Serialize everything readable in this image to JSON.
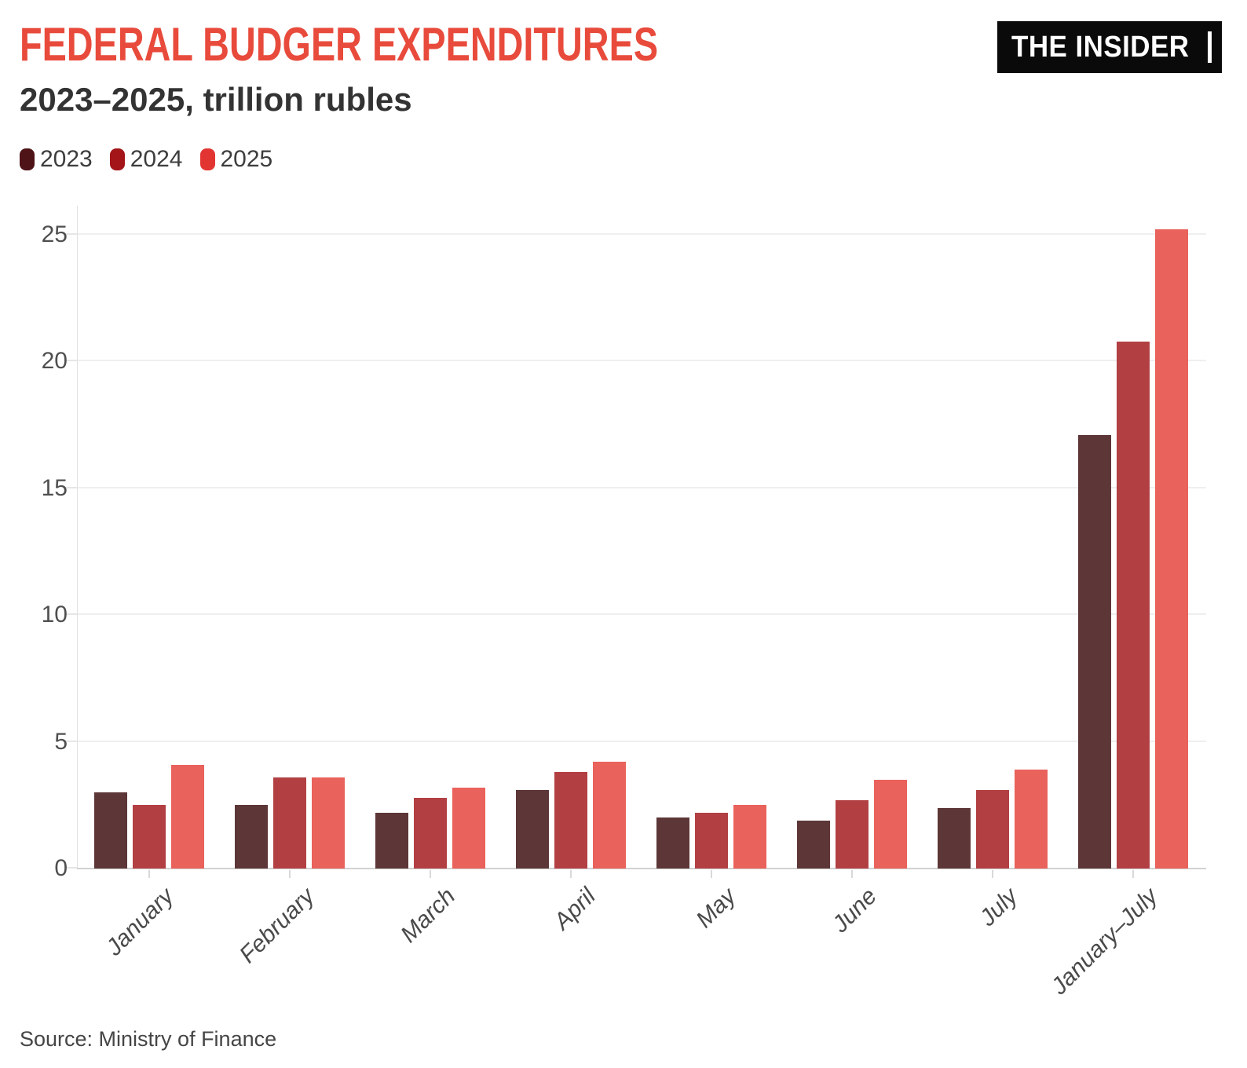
{
  "header": {
    "title": "FEDERAL BUDGER EXPENDITURES",
    "subtitle": "2023–2025, trillion rubles",
    "logo_text": "THE INSIDER"
  },
  "colors": {
    "accent_title": "#e84b3c",
    "logo_background": "#0a0a0a",
    "logo_foreground": "#ffffff",
    "series_2023": "#5d3637",
    "series_2024": "#b24043",
    "series_2025": "#e9625b"
  },
  "legend": [
    {
      "label": "2023",
      "color": "#4e1317"
    },
    {
      "label": "2024",
      "color": "#a31518"
    },
    {
      "label": "2025",
      "color": "#e23531"
    }
  ],
  "chart_data": {
    "type": "bar",
    "title": "FEDERAL BUDGER EXPENDITURES",
    "subtitle": "2023–2025, trillion rubles",
    "categories": [
      "January",
      "February",
      "March",
      "April",
      "May",
      "June",
      "July",
      "January–July"
    ],
    "series": [
      {
        "name": "2023",
        "color": "#5d3637",
        "values": [
          3.0,
          2.5,
          2.2,
          3.1,
          2.0,
          1.9,
          2.4,
          17.1
        ]
      },
      {
        "name": "2024",
        "color": "#b24043",
        "values": [
          2.5,
          3.6,
          2.8,
          3.8,
          2.2,
          2.7,
          3.1,
          20.8
        ]
      },
      {
        "name": "2025",
        "color": "#e9625b",
        "values": [
          4.1,
          3.6,
          3.2,
          4.2,
          2.5,
          3.5,
          3.9,
          25.2
        ]
      }
    ],
    "xlabel": "",
    "ylabel": "trillion rubles",
    "yticks": [
      0,
      5,
      10,
      15,
      20,
      25
    ],
    "ylim": [
      0,
      26.05
    ],
    "grid": true,
    "legend_position": "top-left",
    "x_label_rotation_deg": -45
  },
  "source": "Source: Ministry of Finance"
}
